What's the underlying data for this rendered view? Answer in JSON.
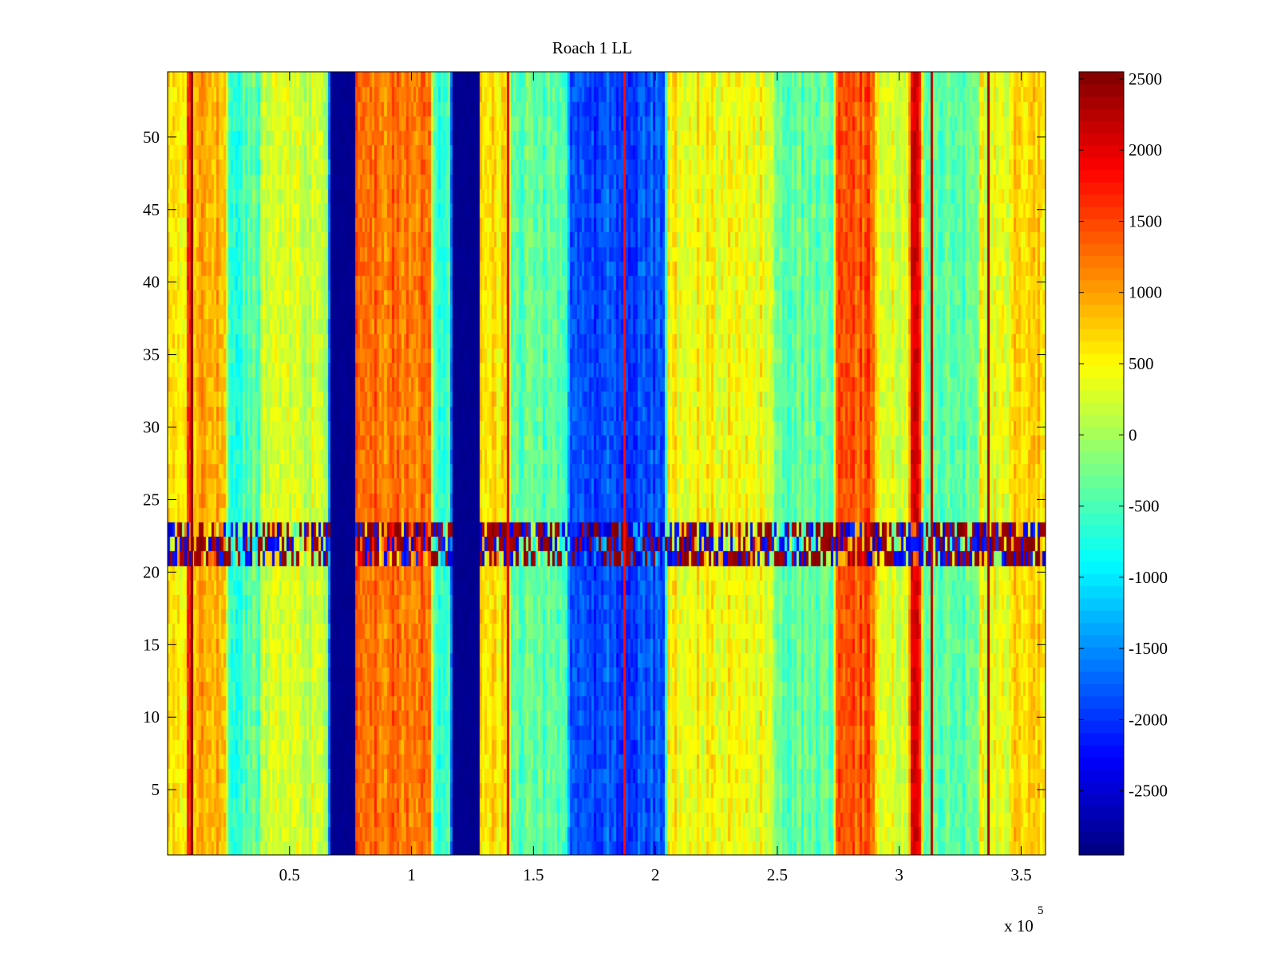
{
  "chart_data": {
    "type": "heatmap",
    "title": "Roach 1 LL",
    "xlabel": "",
    "ylabel": "",
    "x_multiplier_label": "x 10",
    "x_multiplier_exponent": "5",
    "xlim": [
      0,
      3.6
    ],
    "ylim": [
      0.5,
      54.5
    ],
    "xticks": [
      0.5,
      1,
      1.5,
      2,
      2.5,
      3,
      3.5
    ],
    "xtick_labels": [
      "0.5",
      "1",
      "1.5",
      "2",
      "2.5",
      "3",
      "3.5"
    ],
    "yticks": [
      5,
      10,
      15,
      20,
      25,
      30,
      35,
      40,
      45,
      50
    ],
    "ytick_labels": [
      "5",
      "10",
      "15",
      "20",
      "25",
      "30",
      "35",
      "40",
      "45",
      "50"
    ],
    "colormap": "jet",
    "clim": [
      -2950,
      2550
    ],
    "colorbar": {
      "ticks": [
        2500,
        2000,
        1500,
        1000,
        500,
        0,
        -500,
        -1000,
        -1500,
        -2000,
        -2500
      ],
      "tick_labels": [
        "2500",
        "2000",
        "1500",
        "1000",
        "500",
        "0",
        "-500",
        "-1000",
        "-1500",
        "-2000",
        "-2500"
      ]
    },
    "column_profile": [
      [
        0.0,
        600
      ],
      [
        0.08,
        600
      ],
      [
        0.09,
        2500
      ],
      [
        0.1,
        700
      ],
      [
        0.15,
        900
      ],
      [
        0.24,
        850
      ],
      [
        0.25,
        -700
      ],
      [
        0.38,
        -400
      ],
      [
        0.39,
        200
      ],
      [
        0.66,
        200
      ],
      [
        0.67,
        -2900
      ],
      [
        0.76,
        -2900
      ],
      [
        0.77,
        1300
      ],
      [
        1.08,
        1250
      ],
      [
        1.09,
        -600
      ],
      [
        1.16,
        -600
      ],
      [
        1.17,
        -2900
      ],
      [
        1.27,
        -2900
      ],
      [
        1.28,
        700
      ],
      [
        1.4,
        500
      ],
      [
        1.41,
        -300
      ],
      [
        1.64,
        -500
      ],
      [
        1.65,
        -1900
      ],
      [
        2.04,
        -1800
      ],
      [
        2.05,
        500
      ],
      [
        2.48,
        400
      ],
      [
        2.49,
        -400
      ],
      [
        2.73,
        -400
      ],
      [
        2.74,
        1500
      ],
      [
        2.9,
        1400
      ],
      [
        2.91,
        300
      ],
      [
        3.04,
        300
      ],
      [
        3.05,
        1900
      ],
      [
        3.09,
        1900
      ],
      [
        3.1,
        -500
      ],
      [
        3.32,
        -400
      ],
      [
        3.33,
        400
      ],
      [
        3.45,
        400
      ],
      [
        3.46,
        700
      ],
      [
        3.6,
        700
      ]
    ],
    "sharp_lines": [
      {
        "x": 0.095,
        "value": 2550
      },
      {
        "x": 1.39,
        "value": 2000
      },
      {
        "x": 1.87,
        "value": 1800
      },
      {
        "x": 3.13,
        "value": 2200
      },
      {
        "x": 3.36,
        "value": 2300
      }
    ],
    "anomaly_rows": {
      "y_range": [
        21,
        23
      ],
      "description_values": [
        -2000,
        2550
      ]
    }
  }
}
